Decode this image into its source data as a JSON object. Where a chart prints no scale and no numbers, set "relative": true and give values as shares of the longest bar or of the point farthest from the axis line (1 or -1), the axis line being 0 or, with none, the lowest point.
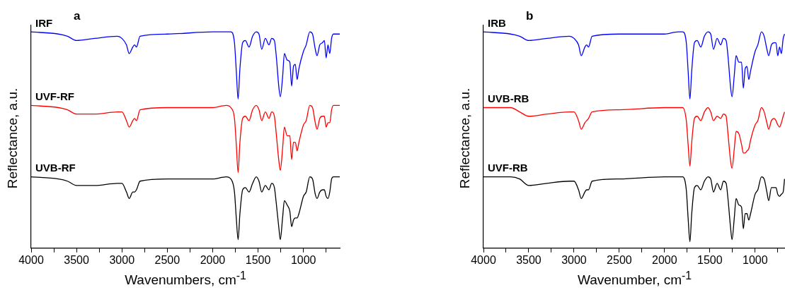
{
  "chart_data": [
    {
      "type": "line",
      "title": "a",
      "xlabel": "Wavenumbers, cm$^{-1}$",
      "ylabel": "Reflectance, a.u.",
      "relative": true,
      "grid": false,
      "legend": false,
      "marker": "none",
      "line_style": "solid",
      "xlim": [
        4000,
        600
      ],
      "xticks": [
        4000,
        {
          "value": 3750,
          "label": null
        },
        3500,
        {
          "value": 3250,
          "label": null
        },
        3000,
        {
          "value": 2750,
          "label": null
        },
        2500,
        {
          "value": 2250,
          "label": null
        },
        2000,
        {
          "value": 1750,
          "label": null
        },
        1500,
        {
          "value": 1250,
          "label": null
        },
        1000,
        {
          "value": 750,
          "label": null
        }
      ],
      "x": [
        4000,
        3700,
        3600,
        3500,
        3300,
        3050,
        3000,
        2950,
        2920,
        2880,
        2860,
        2840,
        2800,
        2500,
        2000,
        1850,
        1800,
        1760,
        1740,
        1720,
        1700,
        1670,
        1640,
        1600,
        1560,
        1520,
        1490,
        1460,
        1420,
        1380,
        1350,
        1320,
        1300,
        1270,
        1255,
        1230,
        1210,
        1180,
        1150,
        1130,
        1110,
        1090,
        1070,
        1050,
        1000,
        970,
        930,
        900,
        870,
        850,
        820,
        790,
        770,
        750,
        730,
        710,
        690,
        670,
        600
      ],
      "series": [
        {
          "name": "IRF",
          "color": "#0000ff",
          "values": [
            1.0,
            0.99,
            0.98,
            0.96,
            0.97,
            0.98,
            0.97,
            0.94,
            0.9,
            0.93,
            0.94,
            0.93,
            0.98,
            0.99,
            1.0,
            1.0,
            1.0,
            0.95,
            0.82,
            0.69,
            0.83,
            0.95,
            0.96,
            0.93,
            0.98,
            1.0,
            0.99,
            0.92,
            0.97,
            0.94,
            0.97,
            0.96,
            0.89,
            0.74,
            0.7,
            0.79,
            0.9,
            0.87,
            0.86,
            0.75,
            0.84,
            0.85,
            0.78,
            0.83,
            0.91,
            0.94,
            1.0,
            0.99,
            0.92,
            0.89,
            0.94,
            0.95,
            0.96,
            0.88,
            0.94,
            0.9,
            0.97,
            0.99,
            0.99
          ]
        },
        {
          "name": "UVF-RF",
          "color": "#ff0000",
          "values": [
            0.66,
            0.65,
            0.64,
            0.62,
            0.62,
            0.63,
            0.63,
            0.59,
            0.56,
            0.59,
            0.6,
            0.59,
            0.64,
            0.65,
            0.65,
            0.66,
            0.65,
            0.6,
            0.48,
            0.35,
            0.49,
            0.6,
            0.61,
            0.59,
            0.64,
            0.66,
            0.64,
            0.59,
            0.63,
            0.6,
            0.63,
            0.61,
            0.53,
            0.4,
            0.36,
            0.46,
            0.56,
            0.52,
            0.52,
            0.41,
            0.49,
            0.49,
            0.45,
            0.49,
            0.57,
            0.59,
            0.66,
            0.65,
            0.58,
            0.55,
            0.6,
            0.61,
            0.61,
            0.56,
            0.58,
            0.58,
            0.64,
            0.66,
            0.66
          ]
        },
        {
          "name": "UVB-RF",
          "color": "#000000",
          "values": [
            0.33,
            0.32,
            0.31,
            0.29,
            0.29,
            0.3,
            0.3,
            0.26,
            0.23,
            0.26,
            0.26,
            0.27,
            0.31,
            0.32,
            0.32,
            0.33,
            0.32,
            0.26,
            0.14,
            0.04,
            0.16,
            0.27,
            0.28,
            0.26,
            0.3,
            0.33,
            0.31,
            0.26,
            0.29,
            0.27,
            0.3,
            0.28,
            0.21,
            0.09,
            0.04,
            0.14,
            0.22,
            0.2,
            0.17,
            0.1,
            0.13,
            0.14,
            0.14,
            0.16,
            0.24,
            0.26,
            0.33,
            0.32,
            0.25,
            0.23,
            0.26,
            0.27,
            0.27,
            0.24,
            0.23,
            0.26,
            0.32,
            0.33,
            0.33
          ]
        }
      ]
    },
    {
      "type": "line",
      "title": "b",
      "xlabel": "Wavenumber, cm$^{-1}$",
      "ylabel": "Reflectance, a.u.",
      "relative": true,
      "grid": false,
      "legend": false,
      "marker": "none",
      "line_style": "solid",
      "xlim": [
        4000,
        670
      ],
      "xticks": [
        4000,
        {
          "value": 3750,
          "label": null
        },
        3500,
        {
          "value": 3250,
          "label": null
        },
        3000,
        {
          "value": 2750,
          "label": null
        },
        2500,
        {
          "value": 2250,
          "label": null
        },
        2000,
        {
          "value": 1750,
          "label": null
        },
        1500,
        {
          "value": 1250,
          "label": null
        },
        1000,
        {
          "value": 750,
          "label": null
        }
      ],
      "x": [
        4000,
        3700,
        3600,
        3500,
        3300,
        3050,
        3000,
        2950,
        2920,
        2880,
        2860,
        2840,
        2800,
        2500,
        2000,
        1850,
        1800,
        1760,
        1740,
        1720,
        1700,
        1670,
        1640,
        1600,
        1560,
        1520,
        1490,
        1460,
        1420,
        1380,
        1350,
        1320,
        1300,
        1270,
        1255,
        1230,
        1210,
        1180,
        1150,
        1130,
        1110,
        1090,
        1070,
        1050,
        1000,
        970,
        930,
        900,
        870,
        850,
        820,
        790,
        770,
        750,
        730,
        710,
        690,
        675
      ],
      "series": [
        {
          "name": "IRB",
          "color": "#0000ff",
          "values": [
            1.0,
            0.99,
            0.98,
            0.96,
            0.97,
            0.98,
            0.97,
            0.94,
            0.89,
            0.93,
            0.94,
            0.93,
            0.98,
            0.99,
            0.99,
            1.0,
            1.0,
            0.95,
            0.82,
            0.69,
            0.82,
            0.95,
            0.96,
            0.93,
            0.98,
            1.0,
            0.99,
            0.92,
            0.97,
            0.94,
            0.97,
            0.96,
            0.89,
            0.74,
            0.7,
            0.8,
            0.89,
            0.86,
            0.86,
            0.74,
            0.83,
            0.84,
            0.78,
            0.82,
            0.91,
            0.94,
            1.0,
            0.98,
            0.92,
            0.89,
            0.94,
            0.95,
            0.95,
            0.89,
            0.93,
            0.9,
            0.97,
            0.99
          ]
        },
        {
          "name": "UVB-RB",
          "color": "#ff0000",
          "values": [
            0.65,
            0.65,
            0.63,
            0.61,
            0.62,
            0.63,
            0.63,
            0.59,
            0.55,
            0.58,
            0.59,
            0.6,
            0.63,
            0.64,
            0.65,
            0.65,
            0.65,
            0.59,
            0.48,
            0.38,
            0.49,
            0.6,
            0.61,
            0.59,
            0.63,
            0.65,
            0.63,
            0.59,
            0.61,
            0.6,
            0.62,
            0.61,
            0.53,
            0.4,
            0.37,
            0.46,
            0.54,
            0.53,
            0.48,
            0.44,
            0.44,
            0.45,
            0.46,
            0.5,
            0.57,
            0.59,
            0.65,
            0.63,
            0.58,
            0.55,
            0.59,
            0.6,
            0.59,
            0.57,
            0.56,
            0.58,
            0.61,
            0.63
          ]
        },
        {
          "name": "UVF-RB",
          "color": "#000000",
          "values": [
            0.33,
            0.33,
            0.32,
            0.29,
            0.3,
            0.31,
            0.31,
            0.27,
            0.23,
            0.26,
            0.27,
            0.27,
            0.31,
            0.32,
            0.33,
            0.33,
            0.33,
            0.27,
            0.14,
            0.03,
            0.16,
            0.28,
            0.29,
            0.27,
            0.31,
            0.33,
            0.32,
            0.26,
            0.3,
            0.27,
            0.31,
            0.3,
            0.23,
            0.09,
            0.04,
            0.14,
            0.23,
            0.2,
            0.19,
            0.09,
            0.16,
            0.16,
            0.13,
            0.16,
            0.25,
            0.27,
            0.33,
            0.32,
            0.26,
            0.22,
            0.28,
            0.28,
            0.28,
            0.25,
            0.24,
            0.25,
            0.26,
            0.32
          ]
        }
      ]
    }
  ]
}
